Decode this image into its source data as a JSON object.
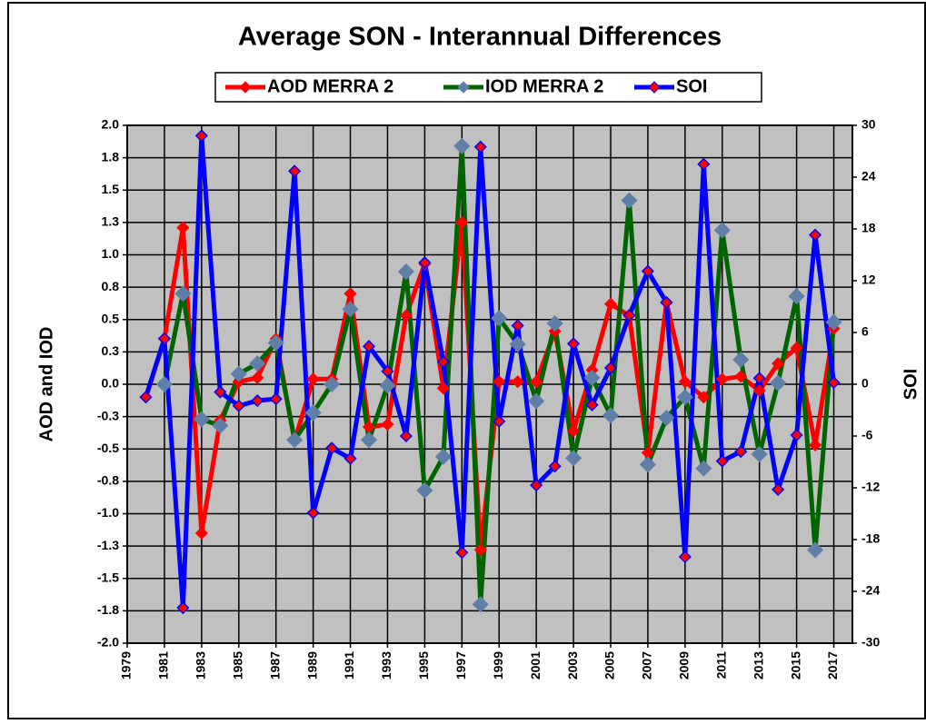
{
  "chart_data": {
    "type": "line",
    "title": "Average SON - Interannual Differences",
    "y_label": "AOD and IOD",
    "y2_label": "SOI",
    "legend": "top",
    "grid": true,
    "background": "#c0c0c0",
    "x": [
      1980,
      1981,
      1982,
      1983,
      1984,
      1985,
      1986,
      1987,
      1988,
      1989,
      1990,
      1991,
      1992,
      1993,
      1994,
      1995,
      1996,
      1997,
      1998,
      1999,
      2000,
      2001,
      2002,
      2003,
      2004,
      2005,
      2006,
      2007,
      2008,
      2009,
      2010,
      2011,
      2012,
      2013,
      2014,
      2015,
      2016,
      2017
    ],
    "xlim": [
      1979,
      2018
    ],
    "xticks": [
      1979,
      1981,
      1983,
      1985,
      1987,
      1989,
      1991,
      1993,
      1995,
      1997,
      1999,
      2001,
      2003,
      2005,
      2007,
      2009,
      2011,
      2013,
      2015,
      2017
    ],
    "ylim": [
      -2,
      2
    ],
    "yticks": [
      {
        "value": 2,
        "label": "2.0"
      },
      {
        "value": 1.75,
        "label": "1.8"
      },
      {
        "value": 1.5,
        "label": "1.5"
      },
      {
        "value": 1.25,
        "label": "1.3"
      },
      {
        "value": 1,
        "label": "1.0"
      },
      {
        "value": 0.75,
        "label": "0.8"
      },
      {
        "value": 0.5,
        "label": "0.5"
      },
      {
        "value": 0.25,
        "label": "0.3"
      },
      {
        "value": 0,
        "label": "0.0"
      },
      {
        "value": -0.25,
        "label": "-0.3"
      },
      {
        "value": -0.5,
        "label": "-0.5"
      },
      {
        "value": -0.75,
        "label": "-0.8"
      },
      {
        "value": -1,
        "label": "-1.0"
      },
      {
        "value": -1.25,
        "label": "-1.3"
      },
      {
        "value": -1.5,
        "label": "-1.5"
      },
      {
        "value": -1.75,
        "label": "-1.8"
      },
      {
        "value": -2,
        "label": "-2.0"
      }
    ],
    "y2lim": [
      -30,
      30
    ],
    "y2ticks": [
      30,
      24,
      18,
      12,
      6,
      0,
      -6,
      -12,
      -18,
      -24,
      -30
    ],
    "series": [
      {
        "name": "AOD MERRA 2",
        "color": "#ff0000",
        "marker_color": "#ff0000",
        "values": [
          -0.1,
          0.35,
          1.21,
          -1.15,
          -0.28,
          0.02,
          0.05,
          0.35,
          -0.44,
          0.04,
          0.04,
          0.7,
          -0.33,
          -0.31,
          0.53,
          0.93,
          -0.03,
          1.25,
          -1.28,
          0.02,
          0.02,
          0.02,
          0.41,
          -0.36,
          0.11,
          0.62,
          0.53,
          -0.53,
          0.63,
          0.02,
          -0.1,
          0.04,
          0.06,
          -0.05,
          0.16,
          0.28,
          -0.47,
          0.43
        ]
      },
      {
        "name": "IOD MERRA 2",
        "color": "#006400",
        "marker_color": "#5f7fa8",
        "values": [
          null,
          0.0,
          0.7,
          -0.27,
          -0.32,
          0.08,
          0.16,
          0.32,
          -0.43,
          -0.22,
          0.0,
          0.58,
          -0.43,
          -0.01,
          0.87,
          -0.82,
          -0.56,
          1.84,
          -1.7,
          0.51,
          0.31,
          -0.13,
          0.47,
          -0.57,
          0.05,
          -0.24,
          1.42,
          -0.62,
          -0.26,
          -0.1,
          -0.65,
          1.19,
          0.19,
          -0.54,
          0.01,
          0.68,
          -1.28,
          0.48
        ]
      },
      {
        "name": "SOI",
        "color": "#0000ff",
        "marker_color": "#ff0000",
        "axis": "y2",
        "values": [
          -1.5,
          5.3,
          -25.9,
          28.8,
          -0.9,
          -2.5,
          -1.9,
          -1.7,
          24.7,
          -14.9,
          -7.4,
          -8.6,
          4.4,
          1.5,
          -6.0,
          14.1,
          2.6,
          -19.5,
          27.5,
          -4.3,
          6.8,
          -11.7,
          -9.5,
          4.7,
          -2.4,
          1.9,
          8.0,
          13.1,
          9.5,
          -20.0,
          25.5,
          -8.9,
          -7.8,
          0.7,
          -12.2,
          -5.9,
          17.3,
          0.2
        ]
      }
    ]
  }
}
